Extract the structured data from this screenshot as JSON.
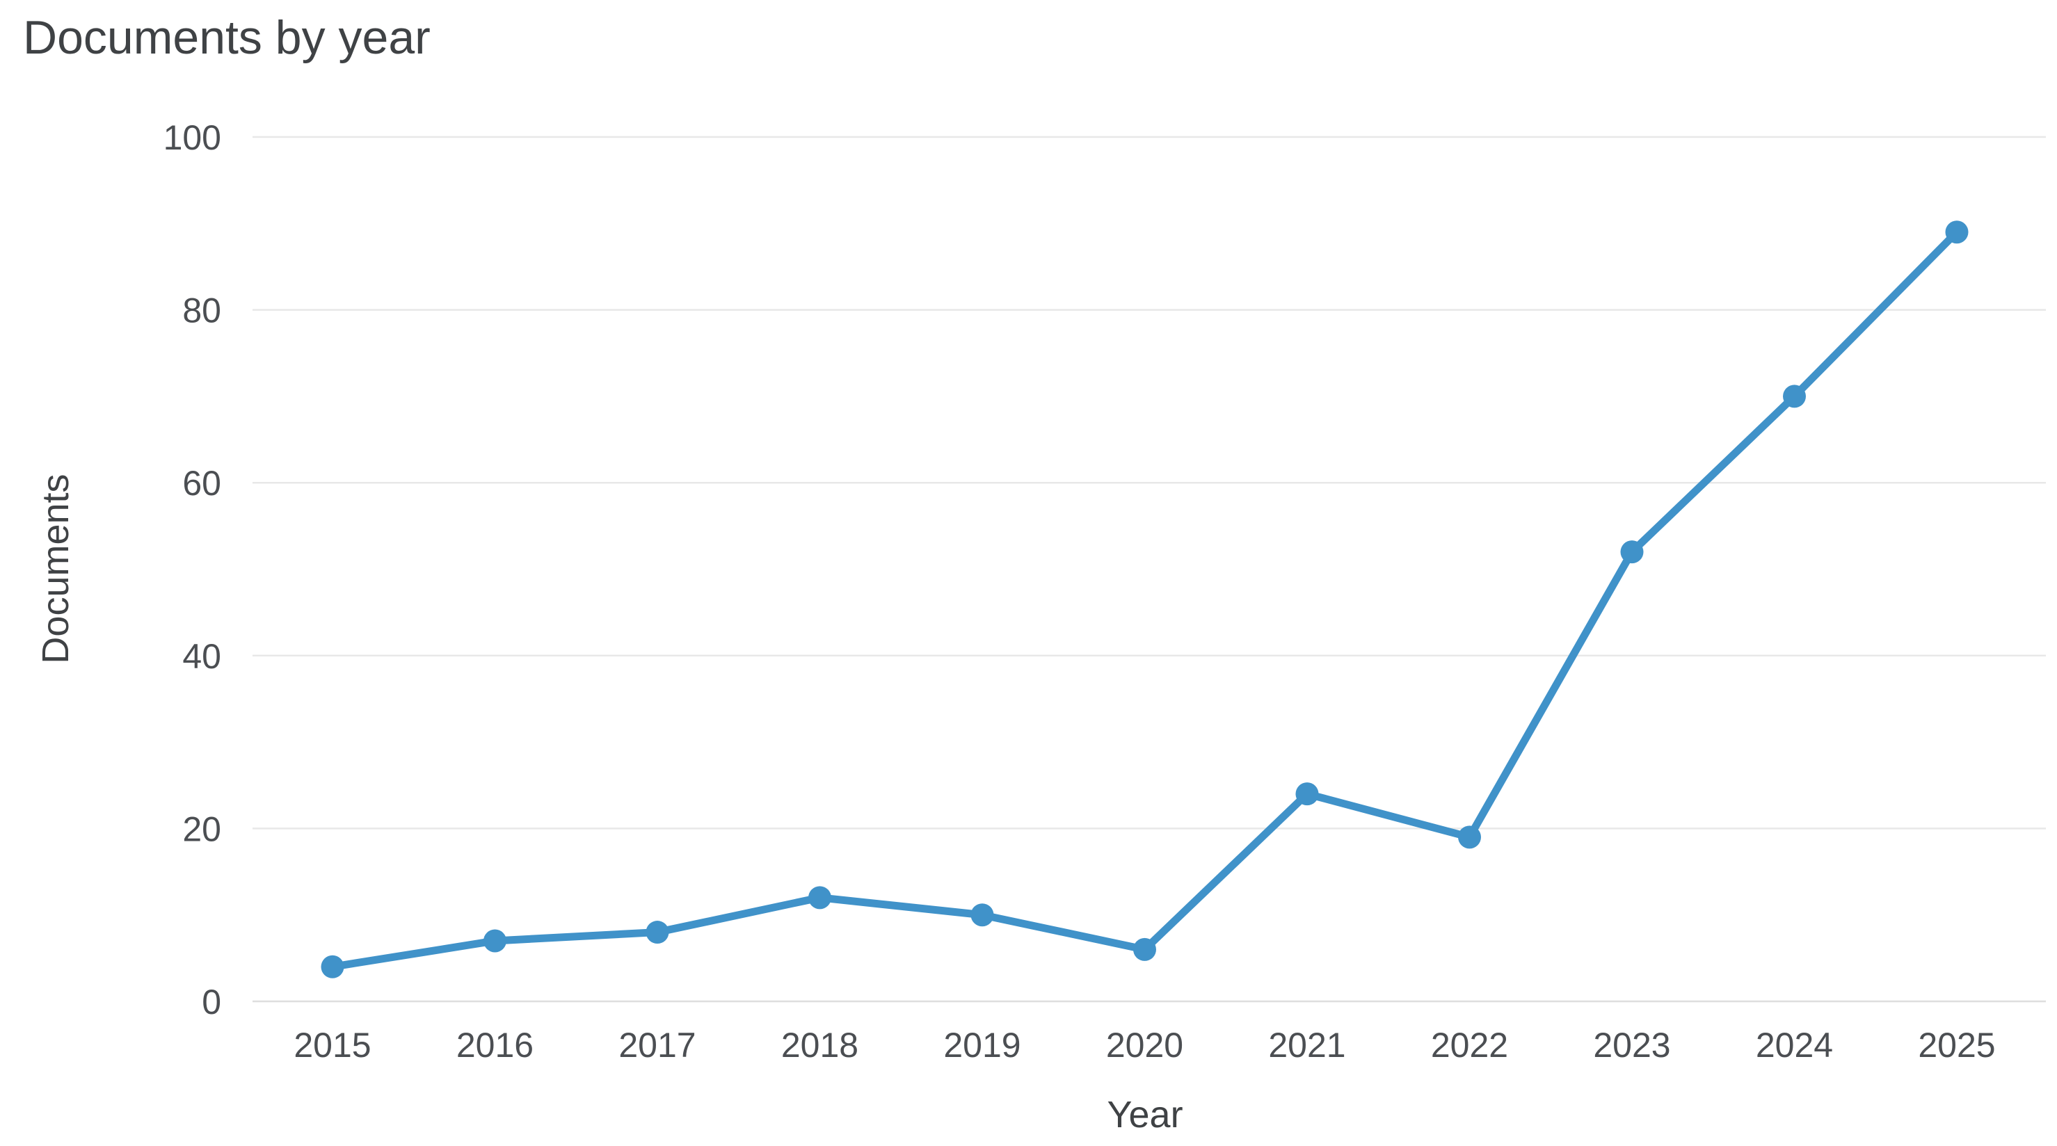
{
  "chart_data": {
    "type": "line",
    "title": "Documents by year",
    "xlabel": "Year",
    "ylabel": "Documents",
    "categories": [
      "2015",
      "2016",
      "2017",
      "2018",
      "2019",
      "2020",
      "2021",
      "2022",
      "2023",
      "2024",
      "2025"
    ],
    "series": [
      {
        "name": "Documents",
        "values": [
          4,
          7,
          8,
          12,
          10,
          6,
          24,
          19,
          52,
          70,
          89
        ]
      }
    ],
    "ylim": [
      0,
      100
    ],
    "yticks": [
      0,
      20,
      40,
      60,
      80,
      100
    ],
    "grid": true,
    "legend": false,
    "marker": "circle",
    "colors": {
      "line": "#4092c9",
      "marker": "#4092c9",
      "grid": "#e8e8e8",
      "zero_line": "#dedede",
      "tick_text": "#4b4e52",
      "title_text": "#3f4245",
      "background": "#ffffff"
    }
  }
}
